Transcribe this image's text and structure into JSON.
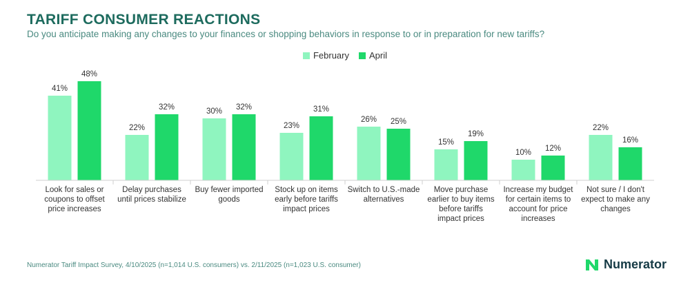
{
  "header": {
    "title": "TARIFF CONSUMER REACTIONS",
    "subtitle": "Do you anticipate making any changes to your finances or shopping behaviors in response to or in preparation for new tariffs?"
  },
  "colors": {
    "february": "#8ff5bf",
    "april": "#1fd86a",
    "axis": "#cfcfcf",
    "title": "#1d6b5e"
  },
  "chart_data": {
    "type": "bar",
    "title": "",
    "xlabel": "",
    "ylabel": "",
    "ylim": [
      0,
      50
    ],
    "grid": false,
    "legend_position": "top-center",
    "categories": [
      [
        "Look for sales or",
        "coupons to offset",
        "price increases"
      ],
      [
        "Delay purchases",
        "until prices stabilize"
      ],
      [
        "Buy fewer imported",
        "goods"
      ],
      [
        "Stock up on items",
        "early before tariffs",
        "impact prices"
      ],
      [
        "Switch to U.S.-made",
        "alternatives"
      ],
      [
        "Move purchase",
        "earlier to buy items",
        "before tariffs",
        "impact prices"
      ],
      [
        "Increase my budget",
        "for certain items to",
        "account for price",
        "increases"
      ],
      [
        "Not sure / I don't",
        "expect to make any",
        "changes"
      ]
    ],
    "series": [
      {
        "name": "February",
        "values": [
          41,
          22,
          30,
          23,
          26,
          15,
          10,
          22
        ]
      },
      {
        "name": "April",
        "values": [
          48,
          32,
          32,
          31,
          25,
          19,
          12,
          16
        ]
      }
    ],
    "value_suffix": "%"
  },
  "footer": {
    "source": "Numerator Tariff Impact Survey, 4/10/2025 (n=1,014 U.S. consumers) vs. 2/11/2025 (n=1,023 U.S. consumer)"
  },
  "brand": {
    "name": "Numerator",
    "icon": "numerator-n-icon"
  }
}
